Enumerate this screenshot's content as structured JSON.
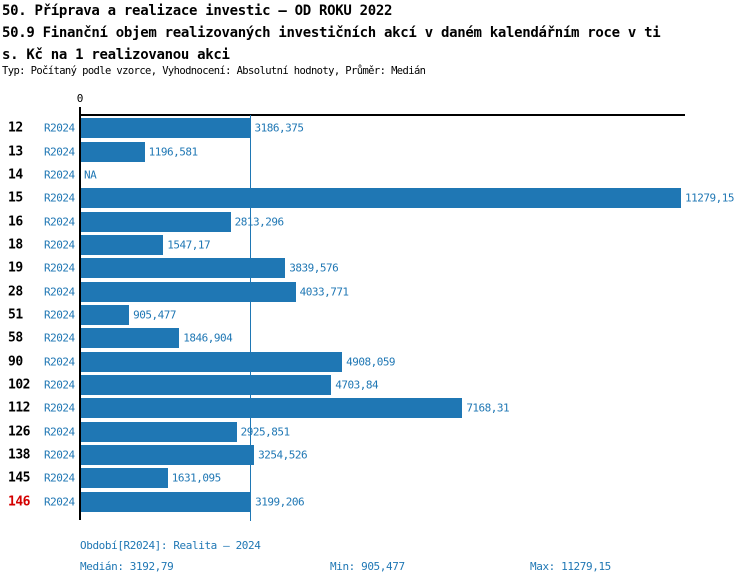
{
  "header": {
    "title_line1": "50. Příprava a realizace investic – OD ROKU 2022",
    "title_line2": "50.9 Finanční objem realizovaných investičních akcí v daném kalendářním roce v ti",
    "title_line3": "s. Kč na 1 realizovanou akci",
    "meta": "Typ: Počítaný podle vzorce, Vyhodnocení: Absolutní hodnoty, Průměr: Medián"
  },
  "chart_data": {
    "type": "bar",
    "orientation": "horizontal",
    "title": "50.9 Finanční objem realizovaných investičních akcí v daném kalendářním roce v tis. Kč na 1 realizovanou akci",
    "series_label": "R2024",
    "origin_tick_label": "0",
    "xlim": [
      0,
      11279.15
    ],
    "grid": false,
    "median_reference_line": 3192.79,
    "bar_color": "#1f77b4",
    "label_color": "#1f77b4",
    "highlighted_category": "146",
    "highlight_color": "#d40000",
    "na_text": "NA",
    "categories": [
      "12",
      "13",
      "14",
      "15",
      "16",
      "18",
      "19",
      "28",
      "51",
      "58",
      "90",
      "102",
      "112",
      "126",
      "138",
      "145",
      "146"
    ],
    "values": [
      3186.375,
      1196.581,
      null,
      11279.15,
      2813.296,
      1547.17,
      3839.576,
      4033.771,
      905.477,
      1846.904,
      4908.059,
      4703.84,
      7168.31,
      2925.851,
      3254.526,
      1631.095,
      3199.206
    ],
    "value_labels": [
      "3186,375",
      "1196,581",
      "NA",
      "11279,15",
      "2813,296",
      "1547,17",
      "3839,576",
      "4033,771",
      "905,477",
      "1846,904",
      "4908,059",
      "4703,84",
      "7168,31",
      "2925,851",
      "3254,526",
      "1631,095",
      "3199,206"
    ]
  },
  "footer": {
    "period": "Období[R2024]: Realita – 2024",
    "median": "Medián: 3192,79",
    "min": "Min: 905,477",
    "max": "Max: 11279,15"
  }
}
